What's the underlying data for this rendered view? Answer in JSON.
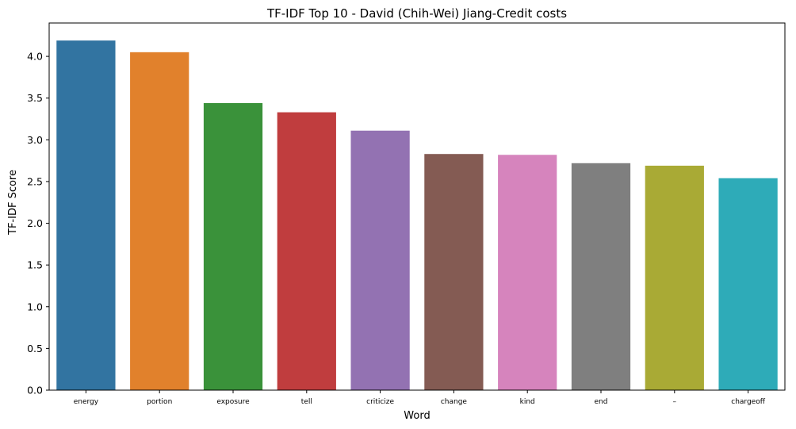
{
  "chart_data": {
    "type": "bar",
    "title": "TF-IDF Top 10 - David (Chih-Wei) Jiang-Credit costs",
    "xlabel": "Word",
    "ylabel": "TF-IDF Score",
    "categories": [
      "energy",
      "portion",
      "exposure",
      "tell",
      "criticize",
      "change",
      "kind",
      "end",
      "–",
      "chargeoff"
    ],
    "values": [
      4.19,
      4.05,
      3.44,
      3.33,
      3.11,
      2.83,
      2.82,
      2.72,
      2.69,
      2.54
    ],
    "colors": [
      "#3274a1",
      "#e1812c",
      "#3a923a",
      "#c03d3e",
      "#9372b2",
      "#845b53",
      "#d684bd",
      "#7f7f7f",
      "#a9aa35",
      "#2eabb8"
    ],
    "ylim": [
      0,
      4.4
    ],
    "yticks": [
      "0.0",
      "0.5",
      "1.0",
      "1.5",
      "2.0",
      "2.5",
      "3.0",
      "3.5",
      "4.0"
    ],
    "grid": false,
    "legend": "none"
  }
}
